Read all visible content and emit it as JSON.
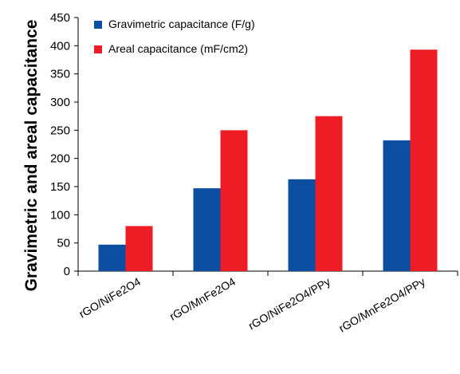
{
  "chart_data": {
    "type": "bar",
    "title": "",
    "xlabel": "",
    "ylabel": "Gravimetric and areal capacitance",
    "ylim": [
      0,
      450
    ],
    "yticks": [
      0,
      50,
      100,
      150,
      200,
      250,
      300,
      350,
      400,
      450
    ],
    "categories": [
      "rGO/NiFe2O4",
      "rGO/MnFe2O4",
      "rGO/NiFe2O4/PPy",
      "rGO/MnFe2O4/PPy"
    ],
    "series": [
      {
        "name": "Gravimetric capacitance (F/g)",
        "color": "#0b4ea2",
        "values": [
          47,
          147,
          163,
          232
        ]
      },
      {
        "name": "Areal capacitance  (mF/cm2)",
        "color": "#ee1c25",
        "values": [
          80,
          250,
          275,
          393
        ]
      }
    ],
    "legend_position": "top-left",
    "grid": false
  }
}
